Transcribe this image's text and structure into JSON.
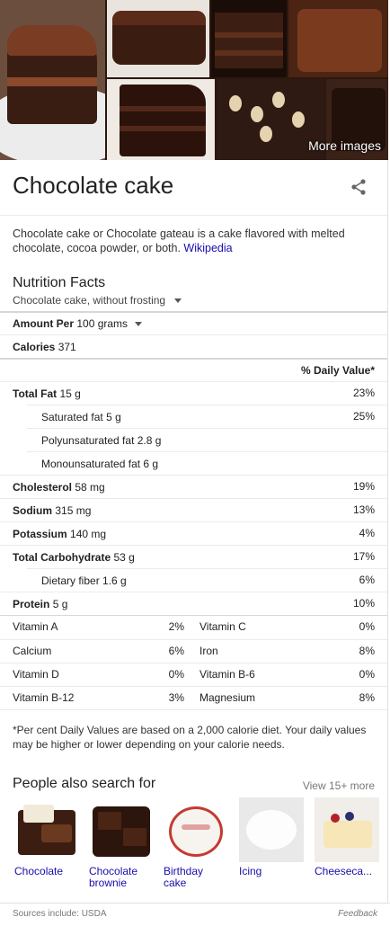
{
  "images": {
    "more_label": "More images"
  },
  "title": "Chocolate cake",
  "description": {
    "text": "Chocolate cake or Chocolate gateau is a cake flavored with melted chocolate, cocoa powder, or both.",
    "source_link": "Wikipedia"
  },
  "nutrition": {
    "title": "Nutrition Facts",
    "variant": "Chocolate cake, without frosting",
    "amount_label": "Amount Per",
    "amount_value": "100 grams",
    "calories_label": "Calories",
    "calories_value": "371",
    "daily_value_header": "% Daily Value*",
    "rows": [
      {
        "label": "Total Fat",
        "value": "15 g",
        "dv": "23%",
        "bold": true,
        "indent": false
      },
      {
        "label": "Saturated fat",
        "value": "5 g",
        "dv": "25%",
        "bold": false,
        "indent": true
      },
      {
        "label": "Polyunsaturated fat",
        "value": "2.8 g",
        "dv": "",
        "bold": false,
        "indent": true
      },
      {
        "label": "Monounsaturated fat",
        "value": "6 g",
        "dv": "",
        "bold": false,
        "indent": true
      },
      {
        "label": "Cholesterol",
        "value": "58 mg",
        "dv": "19%",
        "bold": true,
        "indent": false
      },
      {
        "label": "Sodium",
        "value": "315 mg",
        "dv": "13%",
        "bold": true,
        "indent": false
      },
      {
        "label": "Potassium",
        "value": "140 mg",
        "dv": "4%",
        "bold": true,
        "indent": false
      },
      {
        "label": "Total Carbohydrate",
        "value": "53 g",
        "dv": "17%",
        "bold": true,
        "indent": false
      },
      {
        "label": "Dietary fiber",
        "value": "1.6 g",
        "dv": "6%",
        "bold": false,
        "indent": true
      },
      {
        "label": "Protein",
        "value": "5 g",
        "dv": "10%",
        "bold": true,
        "indent": false
      }
    ],
    "vitamins": [
      {
        "a_label": "Vitamin A",
        "a_dv": "2%",
        "b_label": "Vitamin C",
        "b_dv": "0%"
      },
      {
        "a_label": "Calcium",
        "a_dv": "6%",
        "b_label": "Iron",
        "b_dv": "8%"
      },
      {
        "a_label": "Vitamin D",
        "a_dv": "0%",
        "b_label": "Vitamin B-6",
        "b_dv": "0%"
      },
      {
        "a_label": "Vitamin B-12",
        "a_dv": "3%",
        "b_label": "Magnesium",
        "b_dv": "8%"
      }
    ],
    "footnote": "*Per cent Daily Values are based on a 2,000 calorie diet. Your daily values may be higher or lower depending on your calorie needs."
  },
  "people_also_search": {
    "title": "People also search for",
    "more_label": "View 15+ more",
    "items": [
      {
        "label": "Chocolate",
        "thumb": "chocolate"
      },
      {
        "label": "Chocolate brownie",
        "thumb": "brownie"
      },
      {
        "label": "Birthday cake",
        "thumb": "birthday"
      },
      {
        "label": "Icing",
        "thumb": "icing"
      },
      {
        "label": "Cheeseca...",
        "thumb": "cheesecake"
      }
    ]
  },
  "footer": {
    "sources_label": "Sources include: USDA",
    "feedback_label": "Feedback"
  }
}
